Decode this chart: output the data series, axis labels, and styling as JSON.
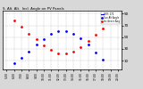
{
  "title": "S. Alt. Alt.  Incl. Angle on PV Panels",
  "background_color": "#d8d8d8",
  "plot_bg": "#ffffff",
  "ylim": [
    -5,
    95
  ],
  "ytick_vals": [
    90,
    70,
    50,
    30,
    10
  ],
  "xlim": [
    4.5,
    20.5
  ],
  "time_hours": [
    5,
    6,
    7,
    8,
    9,
    10,
    11,
    12,
    13,
    14,
    15,
    16,
    17,
    18,
    19,
    20
  ],
  "sun_altitude": [
    -2,
    5,
    15,
    26,
    37,
    47,
    55,
    60,
    60,
    56,
    48,
    37,
    24,
    11,
    -1,
    -10
  ],
  "incidence_angle": [
    88,
    78,
    67,
    56,
    46,
    36,
    28,
    23,
    22,
    25,
    33,
    43,
    54,
    65,
    76,
    87
  ],
  "grid_color": "#aaaaaa",
  "line_color_alt": "blue",
  "line_color_inc": "red",
  "marker_size": 2.0,
  "legend_entries": [
    "HOY: 172",
    "Sun Alt Angle",
    "Incidence Ang"
  ],
  "legend_colors": [
    "#0000ff",
    "#0000ff",
    "#ff0000"
  ]
}
